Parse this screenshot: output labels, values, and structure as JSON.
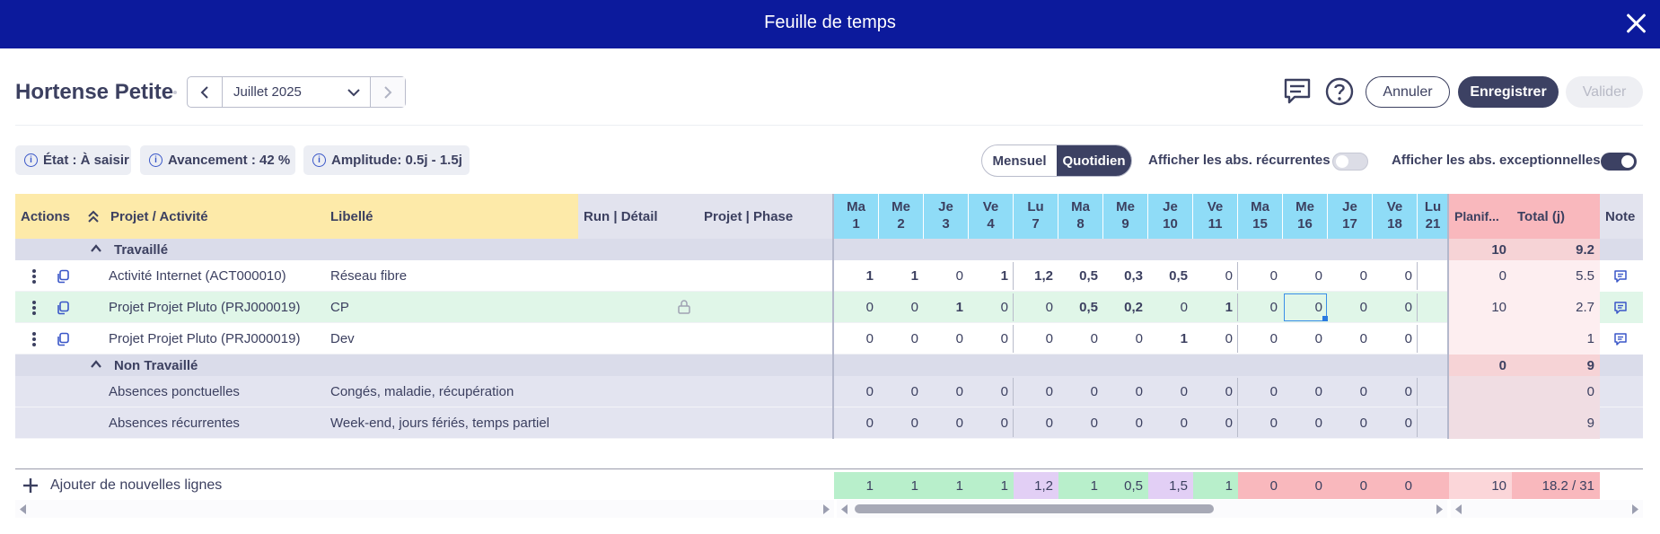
{
  "window": {
    "title": "Feuille de temps"
  },
  "header": {
    "person": "Hortense Petite",
    "month": "Juillet 2025",
    "buttons": {
      "cancel": "Annuler",
      "save": "Enregistrer",
      "validate": "Valider"
    }
  },
  "chips": {
    "state": "État : À saisir",
    "progress": "Avancement : 42 %",
    "amplitude": "Amplitude: 0.5j - 1.5j"
  },
  "view": {
    "monthly": "Mensuel",
    "daily": "Quotidien",
    "selected": "Quotidien"
  },
  "toggles": {
    "recurring": {
      "label": "Afficher les abs. récurrentes",
      "on": false
    },
    "exceptional": {
      "label": "Afficher les abs. exceptionnelles",
      "on": true
    }
  },
  "columns": {
    "actions": "Actions",
    "project": "Projet / Activité",
    "label": "Libellé",
    "run": "Run | Détail",
    "phase": "Projet | Phase",
    "planned": "Planif...",
    "total": "Total (j)",
    "note": "Note"
  },
  "days": [
    {
      "d": "Ma",
      "n": "1"
    },
    {
      "d": "Me",
      "n": "2"
    },
    {
      "d": "Je",
      "n": "3"
    },
    {
      "d": "Ve",
      "n": "4"
    },
    {
      "d": "Lu",
      "n": "7"
    },
    {
      "d": "Ma",
      "n": "8"
    },
    {
      "d": "Me",
      "n": "9"
    },
    {
      "d": "Je",
      "n": "10"
    },
    {
      "d": "Ve",
      "n": "11"
    },
    {
      "d": "Ma",
      "n": "15"
    },
    {
      "d": "Me",
      "n": "16"
    },
    {
      "d": "Je",
      "n": "17"
    },
    {
      "d": "Ve",
      "n": "18"
    },
    {
      "d": "Lu",
      "n": "21"
    }
  ],
  "groups": {
    "worked": {
      "label": "Travaillé",
      "planned": "10",
      "total": "9.2"
    },
    "not_worked": {
      "label": "Non Travaillé",
      "planned": "0",
      "total": "9"
    }
  },
  "rows": [
    {
      "project": "Activité Internet (ACT000010)",
      "label": "Réseau fibre",
      "values": [
        "1",
        "1",
        "0",
        "1",
        "1,2",
        "0,5",
        "0,3",
        "0,5",
        "0",
        "0",
        "0",
        "0",
        "0",
        ""
      ],
      "bold": [
        true,
        true,
        false,
        true,
        true,
        true,
        true,
        true,
        false,
        false,
        false,
        false,
        false,
        false
      ],
      "planned": "0",
      "total": "5.5",
      "locked": false,
      "highlight": false
    },
    {
      "project": "Projet Projet Pluto (PRJ000019)",
      "label": "CP",
      "values": [
        "0",
        "0",
        "1",
        "0",
        "0",
        "0,5",
        "0,2",
        "0",
        "1",
        "0",
        "0",
        "0",
        "0",
        ""
      ],
      "bold": [
        false,
        false,
        true,
        false,
        false,
        true,
        true,
        false,
        true,
        false,
        false,
        false,
        false,
        false
      ],
      "planned": "10",
      "total": "2.7",
      "locked": true,
      "highlight": true
    },
    {
      "project": "Projet Projet Pluto (PRJ000019)",
      "label": "Dev",
      "values": [
        "0",
        "0",
        "0",
        "0",
        "0",
        "0",
        "0",
        "1",
        "0",
        "0",
        "0",
        "0",
        "0",
        ""
      ],
      "bold": [
        false,
        false,
        false,
        false,
        false,
        false,
        false,
        true,
        false,
        false,
        false,
        false,
        false,
        false
      ],
      "planned": "",
      "total": "1",
      "locked": false,
      "highlight": false
    }
  ],
  "absences": [
    {
      "project": "Absences ponctuelles",
      "label": "Congés, maladie, récupération",
      "values": [
        "0",
        "0",
        "0",
        "0",
        "0",
        "0",
        "0",
        "0",
        "0",
        "0",
        "0",
        "0",
        "0",
        ""
      ],
      "total": "0"
    },
    {
      "project": "Absences récurrentes",
      "label": "Week-end, jours fériés, temps partiel",
      "values": [
        "0",
        "0",
        "0",
        "0",
        "0",
        "0",
        "0",
        "0",
        "0",
        "0",
        "0",
        "0",
        "0",
        ""
      ],
      "total": "9"
    }
  ],
  "footer": {
    "add_lines": "Ajouter de nouvelles lignes",
    "values": [
      "1",
      "1",
      "1",
      "1",
      "1,2",
      "1",
      "0,5",
      "1,5",
      "1",
      "0",
      "0",
      "0",
      "0",
      ""
    ],
    "status": [
      "green",
      "green",
      "green",
      "green",
      "purple",
      "green",
      "green",
      "purple",
      "green",
      "red",
      "red",
      "red",
      "red",
      "red"
    ],
    "planned": "10",
    "total": "18.2 / 31"
  },
  "colors": {
    "green": "#b8efcb",
    "purple": "#e2cff5",
    "red": "#f9b8bd",
    "accent": "#0c1a9c"
  }
}
